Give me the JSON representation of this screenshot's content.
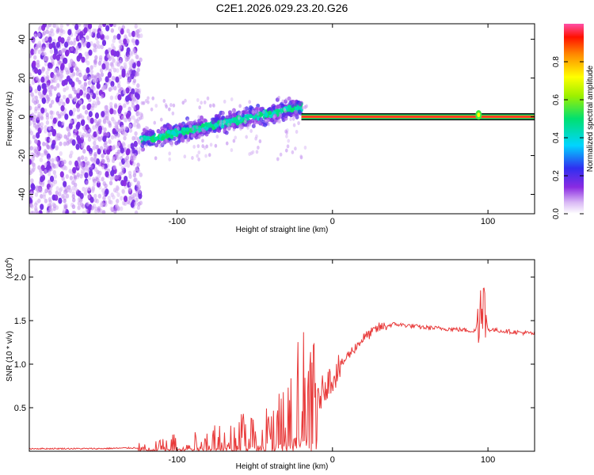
{
  "title": "C2E1.2026.029.23.20.G26",
  "chart_data": [
    {
      "type": "heatmap",
      "name": "spectrogram",
      "xlabel": "Height of straight line (km)",
      "ylabel": "Frequency (Hz)",
      "xlim": [
        -195,
        130
      ],
      "ylim": [
        -50,
        48
      ],
      "xticks": [
        -100,
        0,
        100
      ],
      "xtick_labels": [
        "-100",
        "0",
        "100"
      ],
      "yticks": [
        -40,
        -20,
        0,
        20,
        40
      ],
      "ytick_labels": [
        "-40",
        "-20",
        "0",
        "20",
        "40"
      ],
      "colorbar": {
        "label": "Normalized spectral amplitude",
        "range": [
          0,
          1
        ],
        "ticks": [
          0,
          0.2,
          0.4,
          0.6,
          0.8
        ],
        "tick_labels": [
          "0.0",
          "0.2",
          "0.4",
          "0.6",
          "0.8"
        ],
        "colormap": "rainbow (violet-blue-cyan-green-yellow-red)"
      },
      "regions": [
        {
          "x_range": [
            -195,
            -123
          ],
          "description": "diffuse noise",
          "freq_spread": [
            -50,
            48
          ],
          "amplitude": 0.12
        },
        {
          "x_range": [
            -123,
            -20
          ],
          "description": "rising band",
          "freq_center_start": -12,
          "freq_center_end": 5,
          "amplitude": 0.4
        },
        {
          "x_range": [
            -20,
            130
          ],
          "description": "steady signal",
          "freq_center": 0,
          "amplitude": 0.95
        }
      ]
    },
    {
      "type": "line",
      "name": "snr",
      "xlabel": "Height of straight line (km)",
      "ylabel": "SNR (10 * v/v)",
      "multiplier_label": "(x10",
      "multiplier_exp": "4",
      "xlim": [
        -195,
        130
      ],
      "ylim": [
        0,
        2.2
      ],
      "xticks": [
        -100,
        0,
        100
      ],
      "xtick_labels": [
        "-100",
        "0",
        "100"
      ],
      "yticks": [
        0.5,
        1.0,
        1.5,
        2.0
      ],
      "ytick_labels": [
        "0.5",
        "1.0",
        "1.5",
        "2.0"
      ],
      "color": "#e83a3a",
      "series": [
        {
          "name": "SNR",
          "x": [
            -195,
            -150,
            -125,
            -110,
            -90,
            -70,
            -50,
            -35,
            -25,
            -15,
            -10,
            -5,
            0,
            10,
            20,
            30,
            40,
            60,
            80,
            92,
            96,
            100,
            110,
            130
          ],
          "y": [
            0.03,
            0.03,
            0.04,
            0.08,
            0.12,
            0.18,
            0.25,
            0.35,
            0.65,
            0.8,
            0.55,
            0.75,
            0.85,
            1.1,
            1.3,
            1.42,
            1.46,
            1.42,
            1.4,
            1.38,
            1.8,
            1.4,
            1.38,
            1.35
          ]
        }
      ]
    }
  ]
}
